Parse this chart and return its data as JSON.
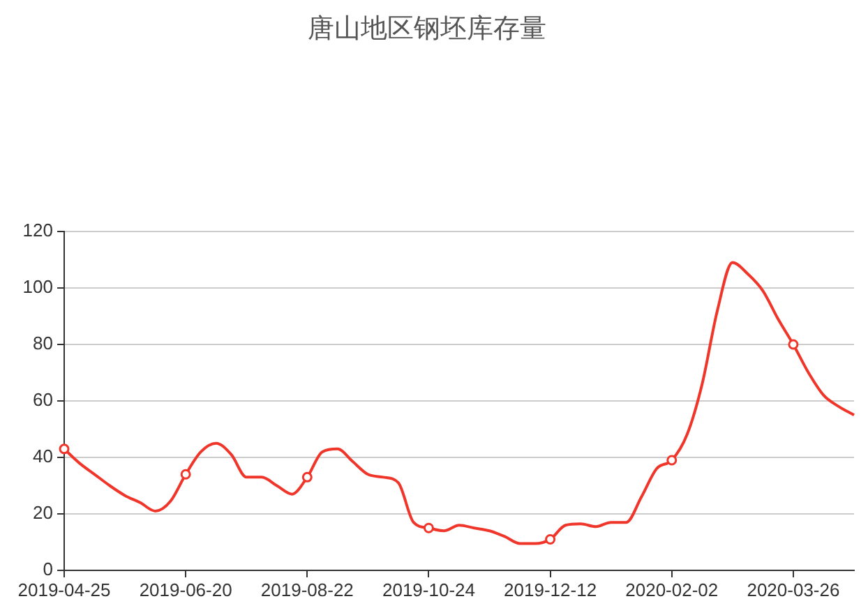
{
  "chart_data": {
    "type": "line",
    "title": "唐山地区钢坯库存量",
    "categories": [
      "2019-04-25",
      null,
      null,
      null,
      null,
      null,
      null,
      null,
      "2019-06-20",
      null,
      null,
      null,
      null,
      null,
      null,
      null,
      "2019-08-22",
      null,
      null,
      null,
      null,
      null,
      null,
      null,
      "2019-10-24",
      null,
      null,
      null,
      null,
      null,
      null,
      null,
      "2019-12-12",
      null,
      null,
      null,
      null,
      null,
      null,
      null,
      "2020-02-02",
      null,
      null,
      null,
      null,
      null,
      null,
      null,
      "2020-03-26",
      null,
      null,
      null,
      null
    ],
    "series": [
      {
        "color": "#f0362a",
        "marker": "none",
        "values": [
          43,
          38,
          34,
          30,
          26.5,
          24,
          21,
          24.5,
          34,
          42,
          45,
          41,
          33,
          33,
          30,
          27,
          33,
          42,
          43,
          38.5,
          34,
          33,
          31,
          17,
          15,
          14,
          16,
          15,
          14,
          12,
          9.5,
          9.5,
          11,
          16,
          16.5,
          15.5,
          17,
          17,
          26,
          36,
          39,
          48,
          66,
          92,
          109,
          105,
          99,
          89,
          80,
          70,
          62,
          58,
          55
        ]
      },
      {
        "type": "scatter",
        "color": "#f0362a",
        "values": [
          43,
          null,
          null,
          null,
          null,
          null,
          null,
          null,
          34,
          null,
          null,
          null,
          null,
          null,
          null,
          null,
          33,
          null,
          null,
          null,
          null,
          null,
          null,
          null,
          15,
          null,
          null,
          null,
          null,
          null,
          null,
          null,
          11,
          null,
          null,
          null,
          null,
          null,
          null,
          null,
          39,
          null,
          null,
          null,
          null,
          null,
          null,
          null,
          80,
          null,
          null,
          null,
          null
        ]
      }
    ],
    "ylim": [
      0,
      120
    ],
    "yticks": [
      0,
      20,
      40,
      60,
      80,
      100,
      120
    ],
    "grid": "y",
    "legend": false,
    "marker": "circle"
  }
}
